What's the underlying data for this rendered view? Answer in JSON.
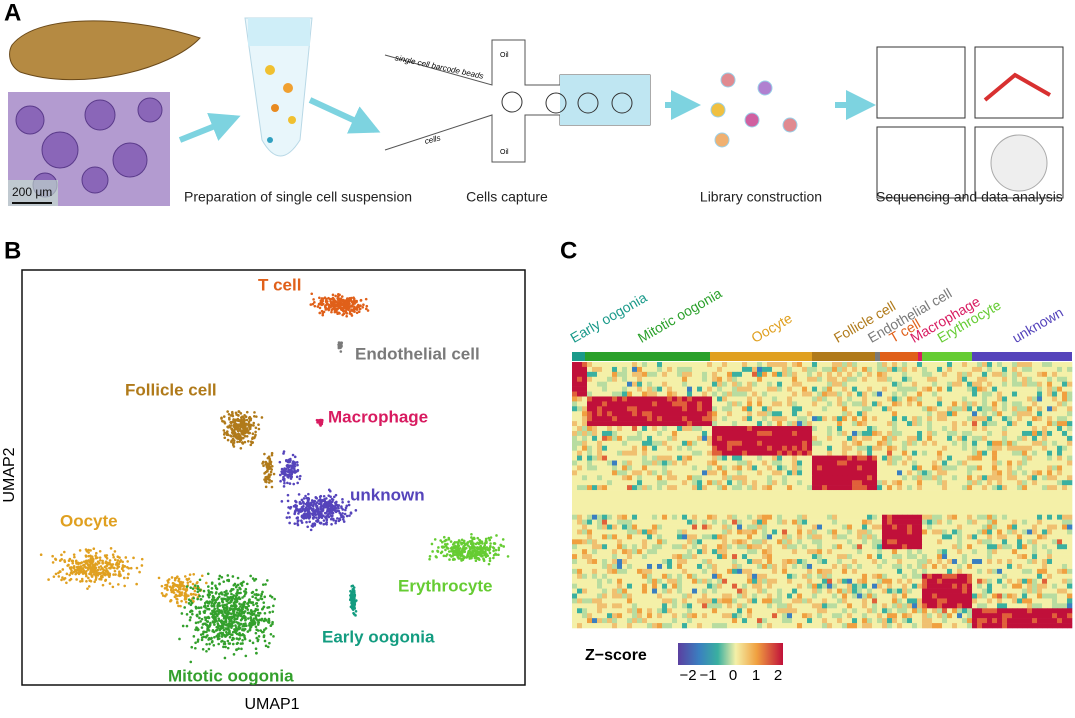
{
  "panel_a": {
    "label": "A",
    "scale_bar": "200 μm",
    "bead_label": "single cell barcode beads",
    "cells_label": "cells",
    "oil_labels": [
      "Oil",
      "Oil"
    ],
    "steps": [
      "Preparation of single cell suspension",
      "Cells capture",
      "Library construction",
      "Sequencing and data analysis"
    ]
  },
  "panel_b": {
    "label": "B",
    "x_axis": "UMAP1",
    "y_axis": "UMAP2",
    "clusters": [
      {
        "name": "T cell",
        "color": "#e0601a"
      },
      {
        "name": "Endothelial cell",
        "color": "#7a7a7a"
      },
      {
        "name": "Follicle cell",
        "color": "#b07a1a"
      },
      {
        "name": "Macrophage",
        "color": "#d81b60"
      },
      {
        "name": "unknown",
        "color": "#5544bb"
      },
      {
        "name": "Oocyte",
        "color": "#e0a020"
      },
      {
        "name": "Erythrocyte",
        "color": "#66cc33"
      },
      {
        "name": "Early oogonia",
        "color": "#139c80"
      },
      {
        "name": "Mitotic oogonia",
        "color": "#33a02c"
      }
    ]
  },
  "panel_c": {
    "label": "C",
    "columns": [
      {
        "name": "Early oogonia",
        "color": "#1a9a8a"
      },
      {
        "name": "Mitotic oogonia",
        "color": "#2aa02a"
      },
      {
        "name": "Oocyte",
        "color": "#e0a020"
      },
      {
        "name": "Follicle cell",
        "color": "#b07a1a"
      },
      {
        "name": "Endothelial cell",
        "color": "#7a7a7a"
      },
      {
        "name": "T cell",
        "color": "#e0601a"
      },
      {
        "name": "Macrophage",
        "color": "#d81b60"
      },
      {
        "name": "Erythrocyte",
        "color": "#66cc33"
      },
      {
        "name": "unknown",
        "color": "#5544bb"
      }
    ],
    "legend": {
      "title": "Z−score",
      "ticks": [
        "−2",
        "−1",
        "0",
        "1",
        "2"
      ]
    }
  }
}
